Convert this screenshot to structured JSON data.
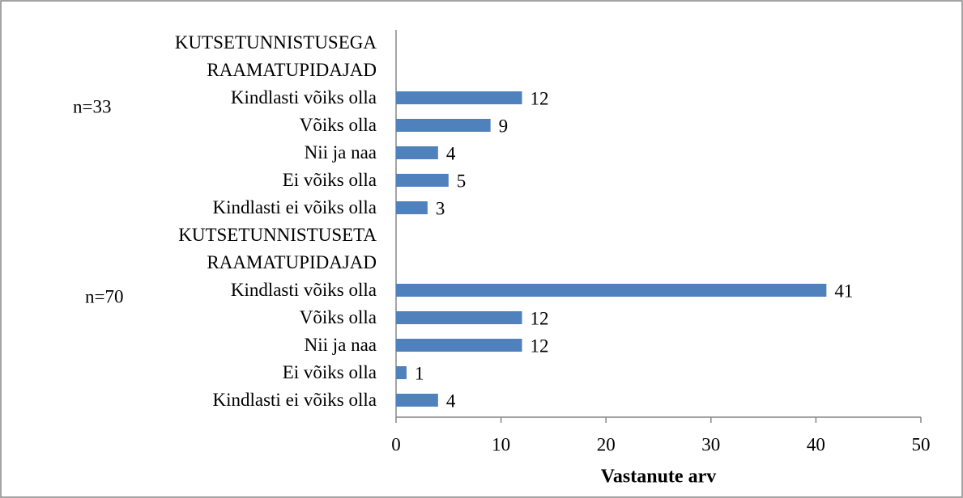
{
  "chart_data": {
    "type": "bar",
    "orientation": "horizontal",
    "categories": [
      "KUTSETUNNISTUSEGA\nRAAMATUPIDAJAD",
      "Kindlasti võiks olla",
      "Võiks olla",
      "Nii ja naa",
      "Ei võiks olla",
      "Kindlasti ei võiks olla",
      "KUTSETUNNISTUSETA\nRAAMATUPIDAJAD",
      "Kindlasti võiks olla",
      "Võiks olla",
      "Nii ja naa",
      "Ei võiks olla",
      "Kindlasti ei võiks olla"
    ],
    "values": [
      null,
      12,
      9,
      4,
      5,
      3,
      null,
      41,
      12,
      12,
      1,
      4
    ],
    "color": "#4f81bd",
    "xlabel": "Vastanute arv",
    "xlim": [
      0,
      50
    ],
    "xticks": [
      0,
      10,
      20,
      30,
      40,
      50
    ],
    "annotations": [
      {
        "text": "n=33"
      },
      {
        "text": "n=70"
      }
    ]
  }
}
